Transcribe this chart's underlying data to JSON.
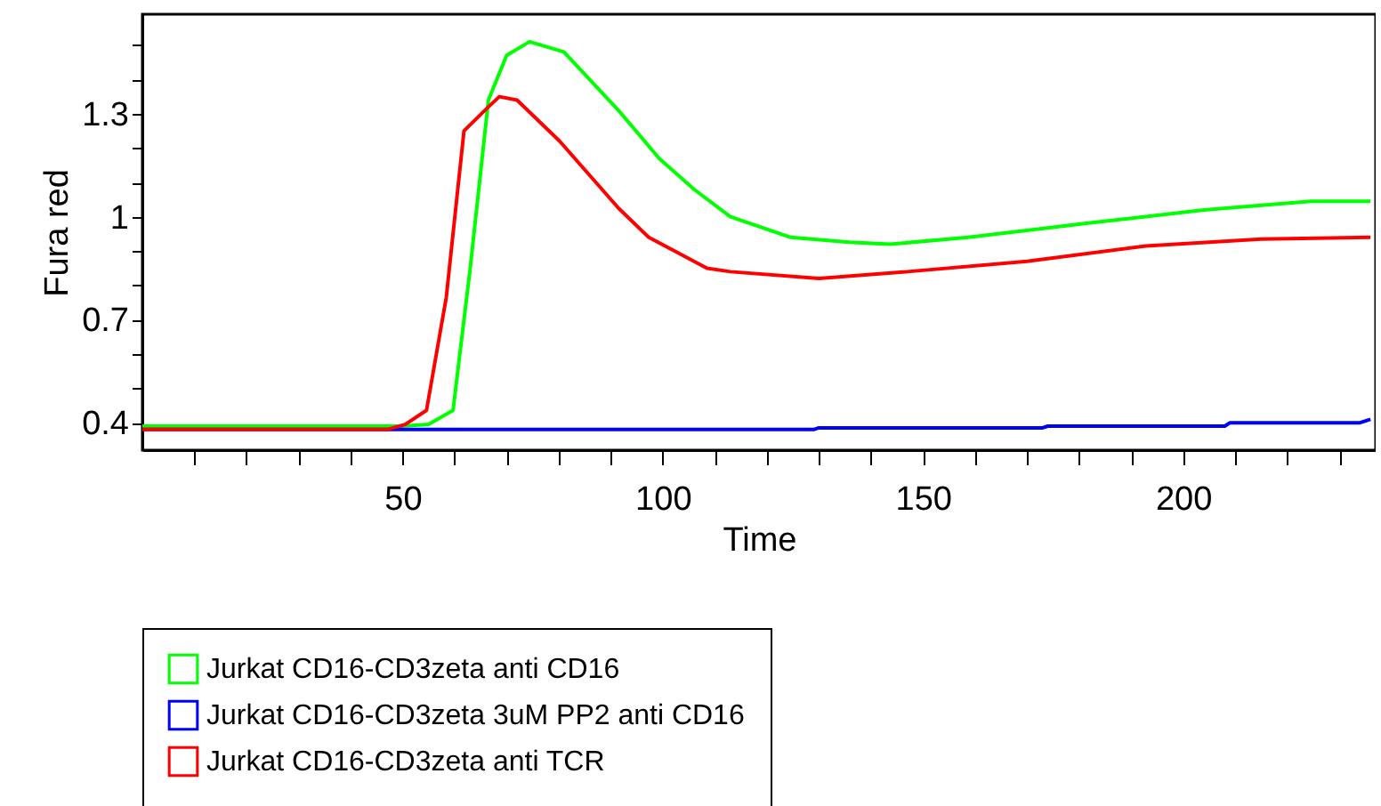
{
  "chart_data": {
    "type": "line",
    "xlabel": "Time",
    "ylabel": "Fura red",
    "xlim": [
      0,
      237
    ],
    "ylim": [
      0.32,
      1.59
    ],
    "xticks": [
      {
        "value": 10,
        "label": null
      },
      {
        "value": 20,
        "label": null
      },
      {
        "value": 30,
        "label": null
      },
      {
        "value": 40,
        "label": null
      },
      50,
      {
        "value": 60,
        "label": null
      },
      {
        "value": 70,
        "label": null
      },
      {
        "value": 80,
        "label": null
      },
      {
        "value": 90,
        "label": null
      },
      100,
      {
        "value": 110,
        "label": null
      },
      {
        "value": 120,
        "label": null
      },
      {
        "value": 130,
        "label": null
      },
      {
        "value": 140,
        "label": null
      },
      150,
      {
        "value": 160,
        "label": null
      },
      {
        "value": 170,
        "label": null
      },
      {
        "value": 180,
        "label": null
      },
      {
        "value": 190,
        "label": null
      },
      200,
      {
        "value": 210,
        "label": null
      },
      {
        "value": 220,
        "label": null
      },
      {
        "value": 230,
        "label": null
      }
    ],
    "yticks": [
      0.4,
      {
        "value": 0.5,
        "label": null
      },
      {
        "value": 0.6,
        "label": null
      },
      0.7,
      {
        "value": 0.8,
        "label": null
      },
      {
        "value": 0.9,
        "label": null
      },
      1,
      {
        "value": 1.1,
        "label": null
      },
      {
        "value": 1.2,
        "label": null
      },
      1.3,
      {
        "value": 1.4,
        "label": null
      },
      {
        "value": 1.5,
        "label": null
      }
    ],
    "grid": false,
    "legend": "bottom",
    "series": [
      {
        "name": "Jurkat CD16-CD3zeta anti CD16",
        "color": "#00ff00",
        "x": [
          0,
          20,
          45,
          50,
          55,
          59.7,
          63,
          66.5,
          70,
          74.4,
          81,
          91.5,
          99.3,
          106,
          113,
          124.6,
          135.8,
          143.7,
          158.7,
          181,
          204,
          224.6,
          236
        ],
        "values": [
          0.39,
          0.39,
          0.39,
          0.39,
          0.395,
          0.436,
          0.85,
          1.34,
          1.47,
          1.51,
          1.48,
          1.31,
          1.17,
          1.08,
          1.0,
          0.94,
          0.926,
          0.92,
          0.94,
          0.98,
          1.02,
          1.045,
          1.045
        ]
      },
      {
        "name": "Jurkat CD16-CD3zeta 3uM PP2 anti CD16",
        "color": "#0000ff",
        "x": [
          0,
          129,
          130,
          173,
          174,
          208,
          209,
          234,
          236
        ],
        "values": [
          0.38,
          0.38,
          0.385,
          0.385,
          0.39,
          0.39,
          0.4,
          0.4,
          0.41
        ]
      },
      {
        "name": "Jurkat CD16-CD3zeta anti TCR",
        "color": "#ff0000",
        "x": [
          0,
          20,
          47,
          50.5,
          54.6,
          58.4,
          61.8,
          66.5,
          68.6,
          72,
          80.2,
          91.5,
          97.3,
          108.5,
          113,
          130,
          147,
          170,
          192.8,
          215,
          236
        ],
        "values": [
          0.38,
          0.38,
          0.38,
          0.395,
          0.436,
          0.765,
          1.25,
          1.32,
          1.35,
          1.34,
          1.22,
          1.025,
          0.94,
          0.85,
          0.84,
          0.82,
          0.84,
          0.87,
          0.915,
          0.935,
          0.94
        ]
      }
    ]
  }
}
